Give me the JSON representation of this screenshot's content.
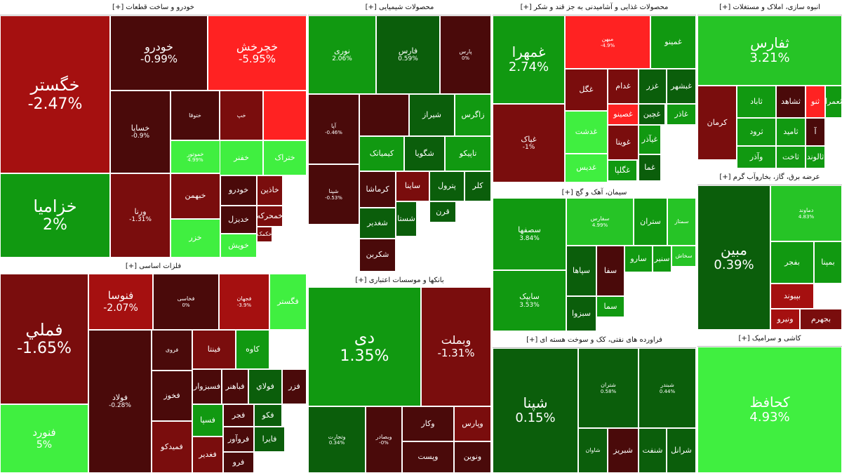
{
  "colors": {
    "dg": "#0b5e0b",
    "mg": "#119911",
    "bg": "#26c426",
    "lg": "#40ef40",
    "dr": "#4a0a0a",
    "mr": "#7a0d0d",
    "rd": "#a51010",
    "br": "#ff2222"
  },
  "chart_data": {
    "type": "treemap",
    "sectors": [
      {
        "key": "auto",
        "name": "خودرو و ساخت قطعات [+]",
        "tiles": [
          {
            "label": "خگستر",
            "value": "-2.47%",
            "color": "rd"
          },
          {
            "label": "خزامیا",
            "value": "2%",
            "color": "mg"
          },
          {
            "label": "خودرو",
            "value": "-0.99%",
            "color": "dr"
          },
          {
            "label": "خچرخش",
            "value": "-5.95%",
            "color": "br"
          },
          {
            "label": "خساپا",
            "value": "-0.9%",
            "color": "dr"
          },
          {
            "label": "ختوقا",
            "value": "",
            "color": "dr"
          },
          {
            "label": "خپ",
            "value": "",
            "color": "mr"
          },
          {
            "label": "خموتور",
            "value": "4.99%",
            "color": "lg"
          },
          {
            "label": "",
            "value": "",
            "color": "br"
          },
          {
            "label": "ختراک",
            "value": "",
            "color": "lg"
          },
          {
            "label": "خفنر",
            "value": "",
            "color": "lg"
          },
          {
            "label": "خریخت",
            "value": "",
            "color": "dr"
          },
          {
            "label": "خبهمن",
            "value": "",
            "color": "mr"
          },
          {
            "label": "ورنا",
            "value": "-1.31%",
            "color": "mr"
          },
          {
            "label": "خزر",
            "value": "",
            "color": "lg"
          },
          {
            "label": "خودرو",
            "value": "",
            "color": "dr"
          },
          {
            "label": "خدیزل",
            "value": "",
            "color": "dr"
          },
          {
            "label": "خاذین",
            "value": "",
            "color": "mr"
          },
          {
            "label": "خمحرکه",
            "value": "",
            "color": "mr"
          },
          {
            "label": "خکمک",
            "value": "",
            "color": "mr"
          },
          {
            "label": "خویش",
            "value": "",
            "color": "lg"
          }
        ]
      },
      {
        "key": "chem",
        "name": "محصولات شیمیایی [+]",
        "tiles": [
          {
            "label": "نوری",
            "value": "2.06%",
            "color": "mg"
          },
          {
            "label": "فارس",
            "value": "0.59%",
            "color": "dg"
          },
          {
            "label": "پارس",
            "value": "0%",
            "color": "dr"
          },
          {
            "label": "آپا",
            "value": "-0.46%",
            "color": "dr"
          },
          {
            "label": "",
            "value": "",
            "color": "dr"
          },
          {
            "label": "شیراز",
            "value": "",
            "color": "dg"
          },
          {
            "label": "زاگرس",
            "value": "",
            "color": "mg"
          },
          {
            "label": "کیمیاتک",
            "value": "",
            "color": "mg"
          },
          {
            "label": "شگویا",
            "value": "",
            "color": "dg"
          },
          {
            "label": "تاپیکو",
            "value": "",
            "color": "mg"
          },
          {
            "label": "شپنا",
            "value": "-0.53%",
            "color": "dr"
          },
          {
            "label": "کرماشا",
            "value": "",
            "color": "dr"
          },
          {
            "label": "ساینا",
            "value": "",
            "color": "mr"
          },
          {
            "label": "پترول",
            "value": "",
            "color": "dg"
          },
          {
            "label": "کلر",
            "value": "",
            "color": "dg"
          },
          {
            "label": "شغدیر",
            "value": "",
            "color": "dg"
          },
          {
            "label": "شکربن",
            "value": "",
            "color": "dr"
          },
          {
            "label": "قرن",
            "value": "",
            "color": "dg"
          },
          {
            "label": "شستا",
            "value": "",
            "color": "dg"
          }
        ]
      },
      {
        "key": "food",
        "name": "محصولات غذایی و آشامیدنی به جز قند و شکر [+]",
        "tiles": [
          {
            "label": "غمهرا",
            "value": "2.74%",
            "color": "mg"
          },
          {
            "label": "غپاک",
            "value": "-1%",
            "color": "mr"
          },
          {
            "label": "میهن",
            "value": "-4.9%",
            "color": "br"
          },
          {
            "label": "غگل",
            "value": "",
            "color": "mr"
          },
          {
            "label": "غدام",
            "value": "",
            "color": "mr"
          },
          {
            "label": "غزر",
            "value": "",
            "color": "dg"
          },
          {
            "label": "غبشهر",
            "value": "",
            "color": "dg"
          },
          {
            "label": "غچین",
            "value": "",
            "color": "dg"
          },
          {
            "label": "غاذر",
            "value": "",
            "color": "mg"
          },
          {
            "label": "غدشت",
            "value": "",
            "color": "lg"
          },
          {
            "label": "غصینو",
            "value": "",
            "color": "br"
          },
          {
            "label": "غویتا",
            "value": "",
            "color": "mr"
          },
          {
            "label": "غیآذر",
            "value": "",
            "color": "mg"
          },
          {
            "label": "غدیس",
            "value": "",
            "color": "lg"
          },
          {
            "label": "غگلپا",
            "value": "",
            "color": "mg"
          },
          {
            "label": "غما",
            "value": "",
            "color": "dg"
          },
          {
            "label": "غمینو",
            "value": "",
            "color": "mg"
          }
        ]
      },
      {
        "key": "build",
        "name": "انبوه سازی، املاک و مستغلات [+]",
        "tiles": [
          {
            "label": "ثفارس",
            "value": "3.21%",
            "color": "bg"
          },
          {
            "label": "کرمان",
            "value": "",
            "color": "mr"
          },
          {
            "label": "ثاباد",
            "value": "",
            "color": "mg"
          },
          {
            "label": "ثشاهد",
            "value": "",
            "color": "dr"
          },
          {
            "label": "ثنو",
            "value": "",
            "color": "br"
          },
          {
            "label": "ثرود",
            "value": "",
            "color": "mg"
          },
          {
            "label": "ثامید",
            "value": "",
            "color": "mg"
          },
          {
            "label": "وآذر",
            "value": "",
            "color": "mg"
          },
          {
            "label": "ثاخت",
            "value": "",
            "color": "mg"
          },
          {
            "label": "ثالوند",
            "value": "",
            "color": "mg"
          },
          {
            "label": "ثعمرا",
            "value": "",
            "color": "mg"
          },
          {
            "label": "آ",
            "value": "",
            "color": "dr"
          }
        ]
      },
      {
        "key": "cement",
        "name": "سیمان، آهک و گچ [+]",
        "tiles": [
          {
            "label": "سصفها",
            "value": "3.84%",
            "color": "mg"
          },
          {
            "label": "سایپک",
            "value": "3.53%",
            "color": "mg"
          },
          {
            "label": "سفارس",
            "value": "4.99%",
            "color": "bg"
          },
          {
            "label": "ستران",
            "value": "",
            "color": "mg"
          },
          {
            "label": "سمتاز",
            "value": "",
            "color": "bg"
          },
          {
            "label": "سپاها",
            "value": "",
            "color": "dg"
          },
          {
            "label": "سفا",
            "value": "",
            "color": "dr"
          },
          {
            "label": "سارو",
            "value": "",
            "color": "mg"
          },
          {
            "label": "سبزوا",
            "value": "",
            "color": "dg"
          },
          {
            "label": "سما",
            "value": "",
            "color": "mg"
          },
          {
            "label": "سنیر",
            "value": "",
            "color": "mg"
          },
          {
            "label": "سخاش",
            "value": "",
            "color": "bg"
          }
        ]
      },
      {
        "key": "power",
        "name": "عرضه برق، گاز، بخاروآب گرم [+]",
        "tiles": [
          {
            "label": "مبین",
            "value": "0.39%",
            "color": "dg"
          },
          {
            "label": "دماوند",
            "value": "4.83%",
            "color": "bg"
          },
          {
            "label": "بفجر",
            "value": "",
            "color": "mg"
          },
          {
            "label": "بمپنا",
            "value": "",
            "color": "mg"
          },
          {
            "label": "بپیوند",
            "value": "",
            "color": "rd"
          },
          {
            "label": "ونیرو",
            "value": "",
            "color": "rd"
          },
          {
            "label": "بجهرم",
            "value": "",
            "color": "mr"
          }
        ]
      },
      {
        "key": "metal",
        "name": "فلزات اساسی [+]",
        "tiles": [
          {
            "label": "فملي",
            "value": "-1.65%",
            "color": "mr"
          },
          {
            "label": "فنورد",
            "value": "5%",
            "color": "lg"
          },
          {
            "label": "فنوسا",
            "value": "-2.07%",
            "color": "rd"
          },
          {
            "label": "فخاسی",
            "value": "0%",
            "color": "dr"
          },
          {
            "label": "فجهان",
            "value": "-3.9%",
            "color": "rd"
          },
          {
            "label": "فگستر",
            "value": "",
            "color": "lg"
          },
          {
            "label": "فولاد",
            "value": "-0.28%",
            "color": "dr"
          },
          {
            "label": "فروی",
            "value": "",
            "color": "dr"
          },
          {
            "label": "فمیدکو",
            "value": "",
            "color": "mr"
          },
          {
            "label": "فینتا",
            "value": "",
            "color": "mr"
          },
          {
            "label": "کاوه",
            "value": "",
            "color": "mg"
          },
          {
            "label": "فخوز",
            "value": "",
            "color": "dr"
          },
          {
            "label": "فباهنر",
            "value": "",
            "color": "dr"
          },
          {
            "label": "فولاي",
            "value": "",
            "color": "dg"
          },
          {
            "label": "فسبزوار",
            "value": "",
            "color": "dr"
          },
          {
            "label": "فسپا",
            "value": "",
            "color": "mg"
          },
          {
            "label": "فجر",
            "value": "",
            "color": "dr"
          },
          {
            "label": "فروآور",
            "value": "",
            "color": "dr"
          },
          {
            "label": "میدکو",
            "value": "",
            "color": "mr"
          },
          {
            "label": "فغدیر",
            "value": "",
            "color": "mr"
          },
          {
            "label": "فایرا",
            "value": "",
            "color": "dg"
          },
          {
            "label": "فرو",
            "value": "",
            "color": "dr"
          },
          {
            "label": "فكو",
            "value": "",
            "color": "dg"
          },
          {
            "label": "فزر",
            "value": "",
            "color": "dr"
          }
        ]
      },
      {
        "key": "bank",
        "name": "بانکها و موسسات اعتباری [+]",
        "tiles": [
          {
            "label": "دی",
            "value": "1.35%",
            "color": "mg"
          },
          {
            "label": "وبملت",
            "value": "-1.31%",
            "color": "mr"
          },
          {
            "label": "وتجارت",
            "value": "0.34%",
            "color": "dg"
          },
          {
            "label": "وبصادر",
            "value": "-0%",
            "color": "dr"
          },
          {
            "label": "وپارس",
            "value": "",
            "color": "mr"
          },
          {
            "label": "وپست",
            "value": "",
            "color": "dr"
          },
          {
            "label": "ونوین",
            "value": "",
            "color": "dr"
          },
          {
            "label": "وکار",
            "value": "",
            "color": "dr"
          }
        ]
      },
      {
        "key": "oil",
        "name": "فراورده های نفتی، کک و سوخت هسته ای [+]",
        "tiles": [
          {
            "label": "شپنا",
            "value": "0.15%",
            "color": "dg"
          },
          {
            "label": "شتران",
            "value": "0.58%",
            "color": "dg"
          },
          {
            "label": "شبندر",
            "value": "0.44%",
            "color": "dg"
          },
          {
            "label": "شبریز",
            "value": "",
            "color": "dr"
          },
          {
            "label": "شرانل",
            "value": "",
            "color": "dg"
          },
          {
            "label": "شاوان",
            "value": "",
            "color": "dg"
          },
          {
            "label": "شنفت",
            "value": "",
            "color": "dg"
          }
        ]
      },
      {
        "key": "tile",
        "name": "کاشی و سرامیک [+]",
        "tiles": [
          {
            "label": "کحافظ",
            "value": "4.93%",
            "color": "lg"
          }
        ]
      }
    ]
  }
}
